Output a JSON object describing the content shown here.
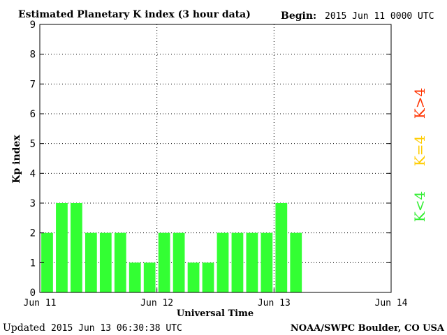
{
  "header": {
    "title": "Estimated Planetary K index (3 hour data)",
    "begin_label": "Begin:",
    "begin_value": "2015 Jun 11 0000 UTC"
  },
  "footer": {
    "updated_label": "Updated",
    "updated_value": "2015 Jun 13 06:30:38 UTC",
    "source": "NOAA/SWPC Boulder, CO USA"
  },
  "legend": {
    "items": [
      {
        "label": "K<4",
        "color": "#33ee33"
      },
      {
        "label": "K=4",
        "color": "#ffcc00"
      },
      {
        "label": "K>4",
        "color": "#ff3300"
      }
    ]
  },
  "chart_data": {
    "type": "bar",
    "title": "Estimated Planetary K index (3 hour data)",
    "xlabel": "Universal Time",
    "ylabel": "Kp index",
    "ylim": [
      0,
      9
    ],
    "y_ticks": [
      "0",
      "1",
      "2",
      "3",
      "4",
      "5",
      "6",
      "7",
      "8",
      "9"
    ],
    "x_ticks": [
      "Jun 11",
      "Jun 12",
      "Jun 13",
      "Jun 14"
    ],
    "grid": "dotted",
    "bar_color": "#33ff33",
    "series": [
      {
        "values": [
          2,
          3,
          3,
          2,
          2,
          2,
          1,
          1,
          2,
          2,
          1,
          1,
          2,
          2,
          2,
          2,
          3,
          2
        ]
      }
    ]
  }
}
